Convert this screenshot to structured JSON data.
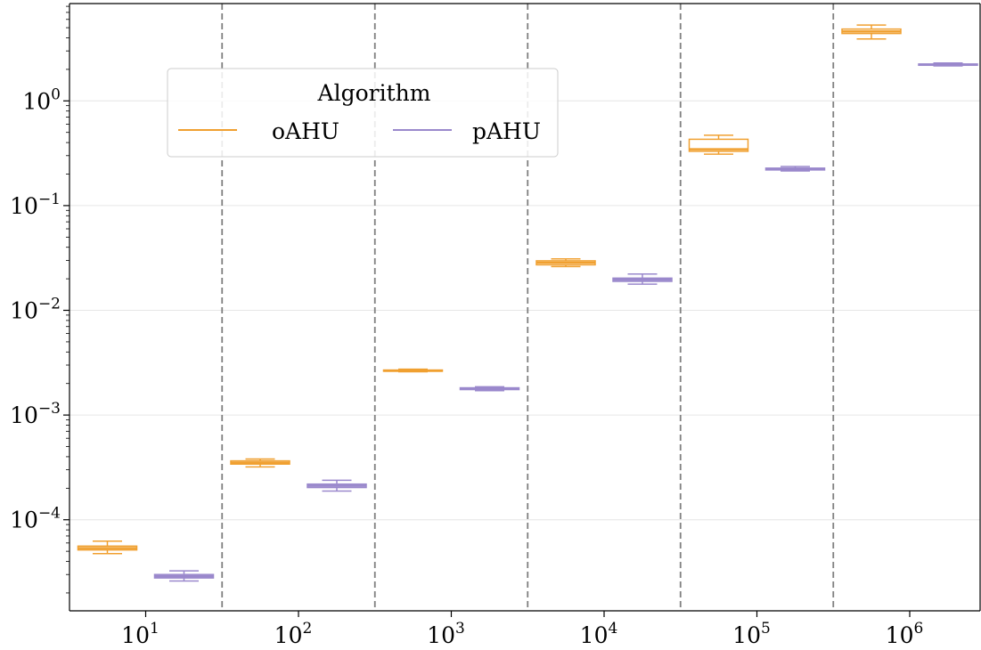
{
  "chart_data": {
    "type": "box",
    "title": "",
    "xlabel": "",
    "ylabel": "",
    "x_scale": "log",
    "y_scale": "log",
    "ylim": [
      1.35e-05,
      8.5
    ],
    "grid": "horizontal",
    "categories": [
      "10^1",
      "10^2",
      "10^3",
      "10^4",
      "10^5",
      "10^6"
    ],
    "x_tick_labels": [
      {
        "base": "10",
        "exp": "1"
      },
      {
        "base": "10",
        "exp": "2"
      },
      {
        "base": "10",
        "exp": "3"
      },
      {
        "base": "10",
        "exp": "4"
      },
      {
        "base": "10",
        "exp": "5"
      },
      {
        "base": "10",
        "exp": "6"
      }
    ],
    "y_ticks": [
      0.0001,
      0.001,
      0.01,
      0.1,
      1
    ],
    "y_tick_labels": [
      {
        "base": "10",
        "exp": "−4"
      },
      {
        "base": "10",
        "exp": "−3"
      },
      {
        "base": "10",
        "exp": "−2"
      },
      {
        "base": "10",
        "exp": "−1"
      },
      {
        "base": "10",
        "exp": "0"
      }
    ],
    "legend": {
      "title": "Algorithm",
      "placement": "upper-left"
    },
    "series": [
      {
        "name": "oAHU",
        "color": "#f0a030",
        "boxes": [
          {
            "whisker_low": 4.75e-05,
            "q1": 5.15e-05,
            "median": 5.35e-05,
            "q3": 5.6e-05,
            "whisker_high": 6.25e-05
          },
          {
            "whisker_low": 0.00032,
            "q1": 0.00034,
            "median": 0.00035,
            "q3": 0.000365,
            "whisker_high": 0.00038
          },
          {
            "whisker_low": 0.00259,
            "q1": 0.00262,
            "median": 0.00265,
            "q3": 0.00269,
            "whisker_high": 0.00274
          },
          {
            "whisker_low": 0.0262,
            "q1": 0.0272,
            "median": 0.0285,
            "q3": 0.0297,
            "whisker_high": 0.031
          },
          {
            "whisker_low": 0.31,
            "q1": 0.33,
            "median": 0.345,
            "q3": 0.43,
            "whisker_high": 0.47
          },
          {
            "whisker_low": 3.9,
            "q1": 4.4,
            "median": 4.6,
            "q3": 4.85,
            "whisker_high": 5.3
          }
        ]
      },
      {
        "name": "pAHU",
        "color": "#9a88cc",
        "boxes": [
          {
            "whisker_low": 2.6e-05,
            "q1": 2.78e-05,
            "median": 2.88e-05,
            "q3": 3e-05,
            "whisker_high": 3.25e-05
          },
          {
            "whisker_low": 0.000188,
            "q1": 0.000203,
            "median": 0.000211,
            "q3": 0.000219,
            "whisker_high": 0.000238
          },
          {
            "whisker_low": 0.00171,
            "q1": 0.00175,
            "median": 0.00178,
            "q3": 0.00182,
            "whisker_high": 0.00186
          },
          {
            "whisker_low": 0.0178,
            "q1": 0.0189,
            "median": 0.0196,
            "q3": 0.0203,
            "whisker_high": 0.0222
          },
          {
            "whisker_low": 0.214,
            "q1": 0.219,
            "median": 0.223,
            "q3": 0.228,
            "whisker_high": 0.236
          },
          {
            "whisker_low": 2.16,
            "q1": 2.19,
            "median": 2.22,
            "q3": 2.25,
            "whisker_high": 2.3
          }
        ]
      }
    ]
  }
}
